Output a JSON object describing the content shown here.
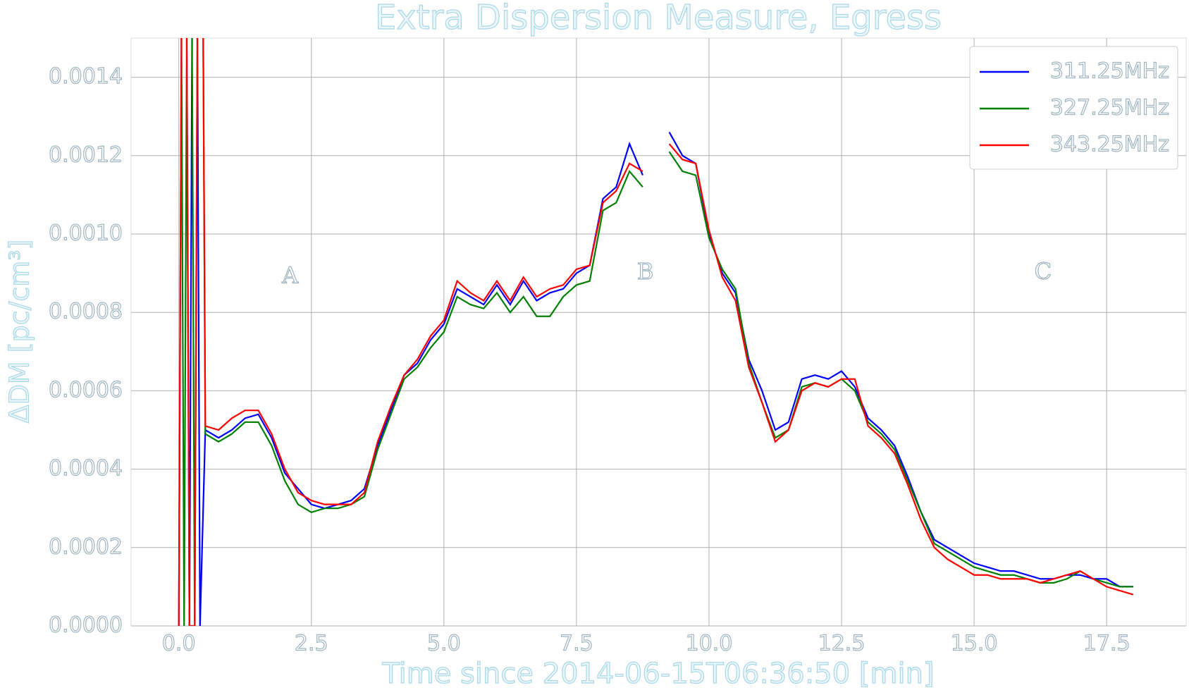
{
  "chart_data": {
    "type": "line",
    "title": "Extra Dispersion Measure, Egress",
    "x_label": "Time since 2014-06-15T06:36:50 [min]",
    "y_label": "ΔDM [pc/cm³]",
    "annotations": [
      {
        "text": "A",
        "x": 2.1,
        "y": 0.00089
      },
      {
        "text": "B",
        "x": 8.8,
        "y": 0.0009
      },
      {
        "text": "C",
        "x": 16.3,
        "y": 0.0009
      }
    ],
    "xlim": [
      -0.9,
      19.0
    ],
    "ylim": [
      0,
      0.0015
    ],
    "xticks": [
      {
        "value": 0,
        "label": "0.0"
      },
      2.5,
      {
        "value": 5,
        "label": "5.0"
      },
      7.5,
      {
        "value": 10,
        "label": "10.0"
      },
      12.5,
      {
        "value": 15,
        "label": "15.0"
      },
      17.5
    ],
    "yticks": [
      {
        "value": 0,
        "label": "0.0000"
      },
      {
        "value": 0.0002,
        "label": "0.0002"
      },
      {
        "value": 0.0004,
        "label": "0.0004"
      },
      {
        "value": 0.0006,
        "label": "0.0006"
      },
      {
        "value": 0.0008,
        "label": "0.0008"
      },
      {
        "value": 0.001,
        "label": "0.0010"
      },
      {
        "value": 0.0012,
        "label": "0.0012"
      },
      {
        "value": 0.0014,
        "label": "0.0014"
      }
    ],
    "grid": true,
    "legend": "upper right",
    "x": [
      0.0,
      0.1,
      0.2,
      0.3,
      0.4,
      0.5,
      0.75,
      1.0,
      1.25,
      1.5,
      1.75,
      2.0,
      2.25,
      2.5,
      2.75,
      3.0,
      3.25,
      3.5,
      3.75,
      4.0,
      4.25,
      4.5,
      4.75,
      5.0,
      5.25,
      5.5,
      5.75,
      6.0,
      6.25,
      6.5,
      6.75,
      7.0,
      7.25,
      7.5,
      7.75,
      8.0,
      8.25,
      8.5,
      8.75,
      9.0,
      9.25,
      9.5,
      9.75,
      10.0,
      10.25,
      10.5,
      10.75,
      11.0,
      11.25,
      11.5,
      11.75,
      12.0,
      12.25,
      12.5,
      12.75,
      13.0,
      13.25,
      13.5,
      13.75,
      14.0,
      14.25,
      14.5,
      14.75,
      15.0,
      15.25,
      15.5,
      15.75,
      16.0,
      16.25,
      16.5,
      16.75,
      17.0,
      17.25,
      17.5,
      17.75,
      18.0
    ],
    "series": [
      {
        "name": "311.25MHz",
        "color": "#0000ff",
        "values": [
          0,
          0.003,
          0,
          0.003,
          0,
          0.0005,
          0.00048,
          0.0005,
          0.00053,
          0.00054,
          0.00048,
          0.00039,
          0.00035,
          0.00031,
          0.0003,
          0.00031,
          0.00032,
          0.00035,
          0.00046,
          0.00055,
          0.00064,
          0.00067,
          0.00073,
          0.00077,
          0.00086,
          0.00084,
          0.00082,
          0.00087,
          0.00082,
          0.00088,
          0.00083,
          0.00085,
          0.00086,
          0.0009,
          0.00092,
          0.00109,
          0.00112,
          0.00123,
          0.00115,
          null,
          0.00126,
          0.0012,
          0.00118,
          0.001,
          0.0009,
          0.00085,
          0.00068,
          0.0006,
          0.0005,
          0.00052,
          0.00063,
          0.00064,
          0.00063,
          0.00065,
          0.00061,
          0.00053,
          0.0005,
          0.00046,
          0.00038,
          0.00029,
          0.00022,
          0.0002,
          0.00018,
          0.00016,
          0.00015,
          0.00014,
          0.00014,
          0.00013,
          0.00012,
          0.00012,
          0.00013,
          0.00013,
          0.00012,
          0.00012,
          0.0001,
          0.0001
        ]
      },
      {
        "name": "327.25MHz",
        "color": "#008000",
        "values": [
          0.003,
          0,
          0.003,
          0,
          0.003,
          0.00049,
          0.00047,
          0.00049,
          0.00052,
          0.00052,
          0.00046,
          0.00037,
          0.00031,
          0.00029,
          0.0003,
          0.0003,
          0.00031,
          0.00033,
          0.00045,
          0.00054,
          0.00063,
          0.00066,
          0.00071,
          0.00075,
          0.00084,
          0.00082,
          0.00081,
          0.00085,
          0.0008,
          0.00084,
          0.00079,
          0.00079,
          0.00084,
          0.00087,
          0.00088,
          0.00106,
          0.00108,
          0.00116,
          0.00112,
          null,
          0.00121,
          0.00116,
          0.00115,
          0.00099,
          0.00091,
          0.00086,
          0.00067,
          0.00057,
          0.00048,
          0.0005,
          0.00061,
          0.00062,
          0.00061,
          0.00063,
          0.0006,
          0.00052,
          0.00049,
          0.00045,
          0.00037,
          0.00029,
          0.00021,
          0.00019,
          0.00017,
          0.00015,
          0.00014,
          0.00013,
          0.00013,
          0.00012,
          0.00011,
          0.00011,
          0.00012,
          0.00014,
          0.00012,
          0.00011,
          0.0001,
          0.0001
        ]
      },
      {
        "name": "343.25MHz",
        "color": "#ff0000",
        "values": [
          0,
          0.003,
          0,
          0,
          0.003,
          0.00051,
          0.0005,
          0.00053,
          0.00055,
          0.00055,
          0.00049,
          0.0004,
          0.00034,
          0.00032,
          0.00031,
          0.00031,
          0.00031,
          0.00034,
          0.00047,
          0.00056,
          0.00064,
          0.00068,
          0.00074,
          0.00078,
          0.00088,
          0.00085,
          0.00083,
          0.00088,
          0.00083,
          0.00089,
          0.00084,
          0.00086,
          0.00087,
          0.00091,
          0.00092,
          0.00108,
          0.00111,
          0.00118,
          0.00116,
          null,
          0.00123,
          0.00119,
          0.00118,
          0.00101,
          0.00089,
          0.00083,
          0.00066,
          0.00057,
          0.00047,
          0.0005,
          0.0006,
          0.00062,
          0.00061,
          0.00063,
          0.00063,
          0.00051,
          0.00048,
          0.00044,
          0.00036,
          0.00027,
          0.0002,
          0.00017,
          0.00015,
          0.00013,
          0.00013,
          0.00012,
          0.00012,
          0.00012,
          0.00011,
          0.00012,
          0.00013,
          0.00014,
          0.00012,
          0.0001,
          9e-05,
          8e-05
        ]
      }
    ]
  }
}
